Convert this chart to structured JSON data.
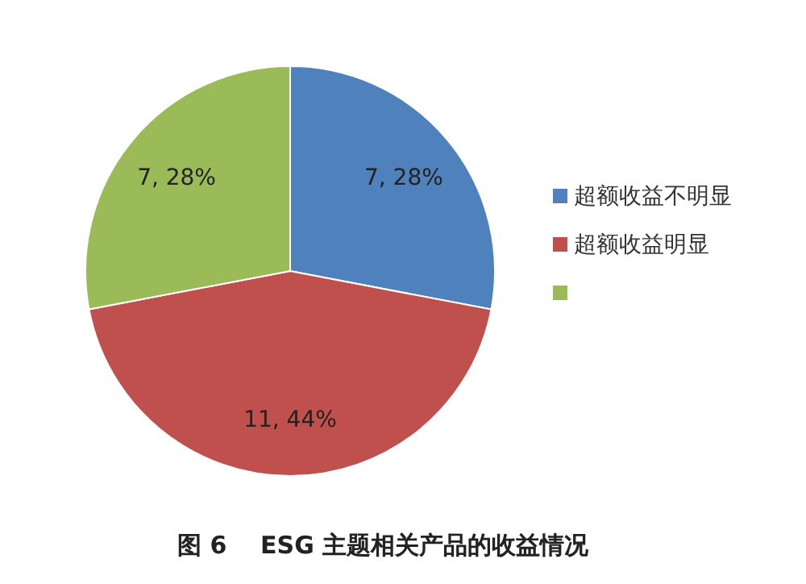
{
  "chart_data": {
    "type": "pie",
    "categories": [
      "超额收益不明显",
      "超额收益明显",
      null
    ],
    "values": [
      7,
      11,
      7
    ],
    "colors": [
      "#4f81bd",
      "#c0504d",
      "#9bbb59"
    ],
    "value_labels": [
      "7, 28%",
      "11, 44%",
      "7, 28%"
    ],
    "legend": "right",
    "annotations": [
      "图 6    ESG 主题相关产品的收益情况"
    ]
  }
}
